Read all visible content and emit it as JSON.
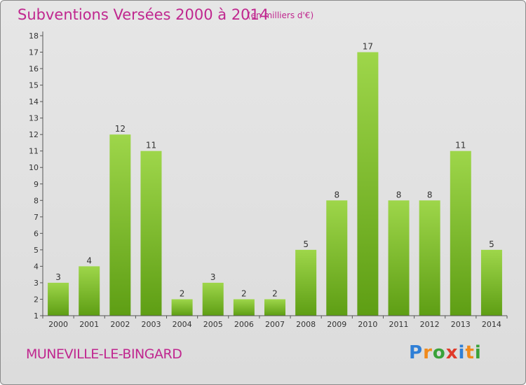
{
  "title": "Subventions Versées 2000 à 2014",
  "unit_note": "(en milliers d'€)",
  "city": "MUNEVILLE-LE-BINGARD",
  "logo": {
    "letters": [
      "P",
      "r",
      "o",
      "x",
      "i",
      "t",
      "i"
    ],
    "colors": [
      "#2f7fd6",
      "#f08a1c",
      "#3aa23a",
      "#e03a2a",
      "#2f7fd6",
      "#f08a1c",
      "#3aa23a"
    ]
  },
  "colors": {
    "bar_top": "#9ed64a",
    "bar_bottom": "#5e9e14",
    "text": "#c0278f"
  },
  "chart_data": {
    "type": "bar",
    "categories": [
      "2000",
      "2001",
      "2002",
      "2003",
      "2004",
      "2005",
      "2006",
      "2007",
      "2008",
      "2009",
      "2010",
      "2011",
      "2012",
      "2013",
      "2014"
    ],
    "values": [
      3,
      4,
      12,
      11,
      2,
      3,
      2,
      2,
      5,
      8,
      17,
      8,
      8,
      11,
      5
    ],
    "data_labels": [
      "3",
      "4",
      "12",
      "11",
      "2",
      "3",
      "2",
      "2",
      "5",
      "8",
      "17",
      "8",
      "8",
      "11",
      "5"
    ],
    "y_ticks": [
      "1",
      "2",
      "3",
      "4",
      "5",
      "6",
      "7",
      "8",
      "9",
      "10",
      "11",
      "12",
      "13",
      "14",
      "15",
      "16",
      "17",
      "18"
    ],
    "ylim": [
      1,
      18
    ],
    "grid": false,
    "legend": "none"
  }
}
